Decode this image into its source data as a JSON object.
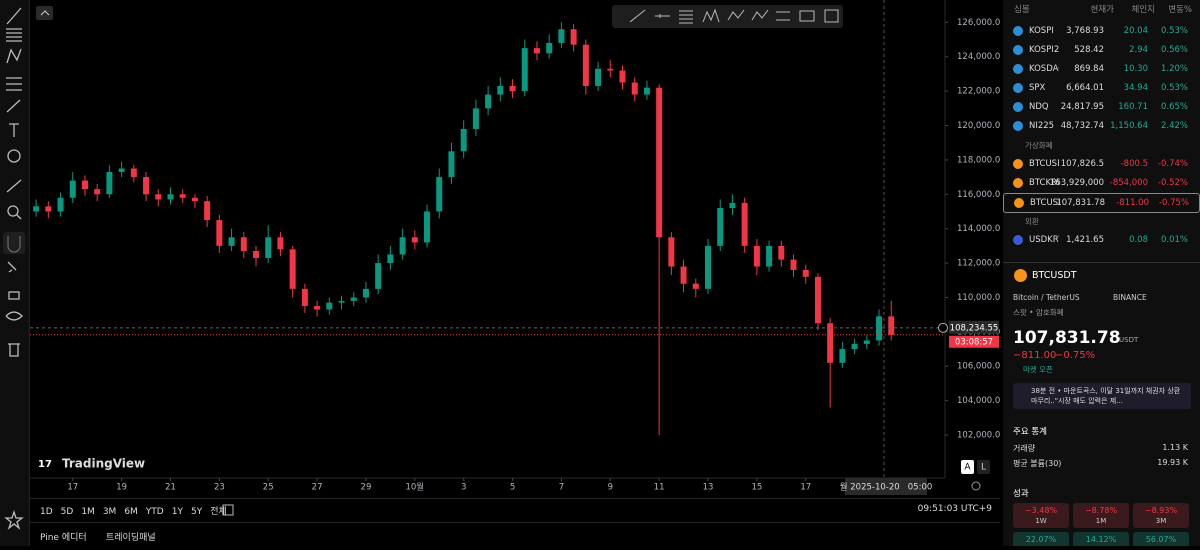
{
  "chart": {
    "type": "candlestick",
    "up_color": "#089981",
    "down_color": "#f23645",
    "open": [
      115000,
      115300,
      115000,
      115800,
      116800,
      116300,
      116000,
      117300,
      117500,
      117000,
      116000,
      115700,
      116000,
      115800,
      115600,
      114500,
      113000,
      113500,
      112700,
      112300,
      113500,
      112800,
      110500,
      109500,
      109300,
      109700,
      109800,
      110000,
      110500,
      112000,
      112500,
      113500,
      113200,
      115000,
      117000,
      118500,
      119800,
      121000,
      121800,
      122300,
      122000,
      124500,
      124200,
      124800,
      125600,
      124700,
      122300,
      123300,
      123200,
      122500,
      121800,
      122200,
      113500,
      111800,
      110800,
      110500,
      113000,
      115200,
      115500,
      113000,
      111800,
      113000,
      112200,
      111600,
      111200,
      108500,
      106200,
      107000,
      107300,
      107500,
      108900
    ],
    "high": [
      115700,
      115600,
      116100,
      117300,
      117100,
      116600,
      117700,
      117900,
      117700,
      117300,
      116300,
      116400,
      116300,
      116000,
      115900,
      114800,
      114000,
      113800,
      113000,
      114200,
      113800,
      113000,
      110800,
      109800,
      110000,
      110100,
      110300,
      110900,
      112500,
      113000,
      114000,
      113900,
      115400,
      117500,
      119000,
      120300,
      121500,
      122300,
      122800,
      122700,
      125000,
      124900,
      125300,
      126000,
      125900,
      125000,
      123700,
      123800,
      123500,
      122800,
      122600,
      122400,
      113800,
      112200,
      111100,
      113400,
      115700,
      116000,
      115800,
      113400,
      113300,
      113300,
      112500,
      111900,
      111400,
      108800,
      107400,
      107600,
      107800,
      109300,
      109800
    ],
    "low": [
      114700,
      114600,
      114700,
      115500,
      115900,
      115600,
      115800,
      117000,
      116700,
      115600,
      115300,
      115400,
      115500,
      115200,
      114100,
      112600,
      112700,
      112300,
      111800,
      112000,
      112400,
      110000,
      109100,
      108900,
      109000,
      109300,
      109500,
      109700,
      110200,
      111600,
      112200,
      112800,
      112900,
      114600,
      116600,
      118100,
      119400,
      120600,
      121400,
      121600,
      121700,
      123800,
      123900,
      124500,
      124300,
      121800,
      122000,
      122800,
      122100,
      121400,
      121500,
      102000,
      111300,
      110300,
      110000,
      110200,
      112700,
      114800,
      112600,
      111300,
      111500,
      111800,
      111200,
      110800,
      108100,
      103600,
      105900,
      106700,
      107000,
      107200,
      107500
    ],
    "close": [
      115300,
      115000,
      115800,
      116800,
      116300,
      116000,
      117300,
      117500,
      117000,
      116000,
      115700,
      116000,
      115800,
      115600,
      114500,
      113000,
      113500,
      112700,
      112300,
      113500,
      112800,
      110500,
      109500,
      109300,
      109700,
      109800,
      110000,
      110500,
      112000,
      112500,
      113500,
      113200,
      115000,
      117000,
      118500,
      119800,
      121000,
      121800,
      122300,
      122000,
      124500,
      124200,
      124800,
      125600,
      124700,
      122300,
      123300,
      123200,
      122500,
      121800,
      122200,
      113500,
      111800,
      110800,
      110500,
      113000,
      115200,
      115500,
      113000,
      111800,
      113000,
      112200,
      111600,
      111200,
      108500,
      106200,
      107000,
      107300,
      107500,
      108900,
      107831.78
    ],
    "xlim": [
      -0.5,
      74.4
    ],
    "ylim": [
      99500,
      127300
    ],
    "xticks": [
      {
        "value": 3,
        "label": "17"
      },
      {
        "value": 7,
        "label": "19"
      },
      {
        "value": 11,
        "label": "21"
      },
      {
        "value": 15,
        "label": "23"
      },
      {
        "value": 19,
        "label": "25"
      },
      {
        "value": 23,
        "label": "27"
      },
      {
        "value": 27,
        "label": "29"
      },
      {
        "value": 31,
        "label": "10월"
      },
      {
        "value": 35,
        "label": "3"
      },
      {
        "value": 39,
        "label": "5"
      },
      {
        "value": 43,
        "label": "7"
      },
      {
        "value": 47,
        "label": "9"
      },
      {
        "value": 51,
        "label": "11"
      },
      {
        "value": 55,
        "label": "13"
      },
      {
        "value": 59,
        "label": "15"
      },
      {
        "value": 63,
        "label": "17"
      }
    ],
    "yticks": [
      {
        "value": 126000,
        "label": "126,000.00"
      },
      {
        "value": 124000,
        "label": "124,000.00"
      },
      {
        "value": 122000,
        "label": "122,000.00"
      },
      {
        "value": 120000,
        "label": "120,000.00"
      },
      {
        "value": 118000,
        "label": "118,000.00"
      },
      {
        "value": 116000,
        "label": "116,000.00"
      },
      {
        "value": 114000,
        "label": "114,000.00"
      },
      {
        "value": 112000,
        "label": "112,000.00"
      },
      {
        "value": 110000,
        "label": "110,000.00"
      },
      {
        "value": 108000,
        "label": "108,000.00"
      },
      {
        "value": 106000,
        "label": "106,000.00"
      },
      {
        "value": 104000,
        "label": "104,000.00"
      },
      {
        "value": 102000,
        "label": "102,000.00"
      }
    ],
    "crosshair_price": {
      "value": 108234.55,
      "label": "108,234.55"
    },
    "countdown": "03:08:57",
    "crosshair_time": "월 2025-10-20   05:00",
    "logo": "TradingView",
    "scale_buttons": [
      "A",
      "L"
    ]
  },
  "bottom_bar": {
    "ranges": [
      "1D",
      "5D",
      "1M",
      "3M",
      "6M",
      "YTD",
      "1Y",
      "5Y",
      "전체"
    ],
    "clock": "09:51:03 UTC+9"
  },
  "tabs": [
    "Pine 에디터",
    "트레이딩패널"
  ],
  "watchlist": {
    "columns": [
      "심볼",
      "현재가",
      "체인지",
      "변동%"
    ],
    "groups": [
      {
        "rows": [
          [
            "KOSPI",
            "3,768.93",
            "20.04",
            "0.53%"
          ],
          [
            "KOSPI20",
            "528.42",
            "2.94",
            "0.56%"
          ],
          [
            "KOSDAQ",
            "869.84",
            "10.30",
            "1.20%"
          ],
          [
            "SPX",
            "6,664.01",
            "34.94",
            "0.53%"
          ],
          [
            "NDQ",
            "24,817.95",
            "160.71",
            "0.65%"
          ],
          [
            "NI225",
            "48,732.74",
            "1,150.64",
            "2.42%"
          ]
        ]
      },
      {
        "title": "가상화폐",
        "rows": [
          [
            "BTCUSD",
            "107,826.5",
            "-800.5",
            "-0.74%"
          ],
          [
            "BTCKRW",
            "163,929,000",
            "-854,000",
            "-0.52%"
          ],
          [
            "BTCUSDT",
            "107,831.78",
            "-811.00",
            "-0.75%"
          ]
        ]
      },
      {
        "title": "외환",
        "rows": [
          [
            "USDKRW",
            "1,421.65",
            "0.08",
            "0.01%"
          ]
        ]
      }
    ]
  },
  "detail": {
    "symbol": "BTCUSDT",
    "name": "Bitcoin / TetherUS",
    "exchange": "BINANCE",
    "kind": "스팟 • 암호화폐",
    "price": "107,831.78",
    "currency": "USDT",
    "change": "−811.00",
    "change_pct": "−0.75%",
    "status": "마켓 오픈",
    "news": "38분 전 • 마운트곡스, 이달 31일까지 채권자 상환 마무리..\"시장 매도 압력은 제...",
    "stats_title": "주요 통계",
    "stats": [
      [
        "거래량",
        "1.13 K"
      ],
      [
        "평균 볼륨(30)",
        "19.93 K"
      ]
    ],
    "perf_title": "성과",
    "perf": [
      [
        "−3.48%",
        "1W"
      ],
      [
        "−8.78%",
        "1M"
      ],
      [
        "−8.93%",
        "3M"
      ],
      [
        "22.07%"
      ],
      [
        "14.12%"
      ],
      [
        "56.07%"
      ]
    ]
  }
}
